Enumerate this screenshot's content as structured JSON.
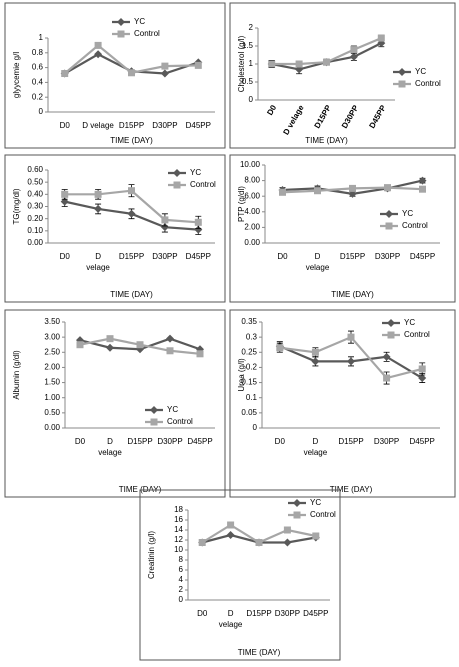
{
  "chart_data": [
    {
      "type": "line",
      "y_label": "glyycemie g/l",
      "x_label": "TIME (DAY)",
      "legend": "top",
      "categories": [
        "D0",
        "D velage",
        "D15PP",
        "D30PP",
        "D45PP"
      ],
      "ylim": [
        0,
        1
      ],
      "yticks": [
        0,
        0.2,
        0.4,
        0.6,
        0.8,
        1
      ],
      "series": [
        {
          "name": "YC",
          "color": "#595959",
          "values": [
            0.52,
            0.78,
            0.55,
            0.52,
            0.67
          ]
        },
        {
          "name": "Control",
          "color": "#a6a6a6",
          "values": [
            0.52,
            0.9,
            0.53,
            0.62,
            0.63
          ]
        }
      ]
    },
    {
      "type": "line",
      "y_label": "Cholesterol (g/l)",
      "x_label": "TIME (DAY)",
      "legend": "right",
      "categories": [
        "D0",
        "D velage",
        "D15PP",
        "D30PP",
        "D45PP"
      ],
      "ylim": [
        0,
        2
      ],
      "yticks": [
        0,
        0.5,
        1,
        1.5,
        2
      ],
      "series": [
        {
          "name": "YC",
          "color": "#595959",
          "values": [
            1.0,
            0.85,
            1.05,
            1.2,
            1.58
          ],
          "errors": [
            0.1,
            0.12,
            0.08,
            0.1,
            0.1
          ]
        },
        {
          "name": "Control",
          "color": "#a6a6a6",
          "values": [
            1.0,
            1.0,
            1.05,
            1.4,
            1.72
          ],
          "errors": [
            0.1,
            0.08,
            0.08,
            0.1,
            0.08
          ]
        }
      ]
    },
    {
      "type": "line",
      "y_label": "TG(mg/dl)",
      "x_label": "TIME (DAY)",
      "legend": "top-right",
      "categories": [
        "D0",
        "D velage",
        "D15PP",
        "D30PP",
        "D45PP"
      ],
      "ylim": [
        0,
        0.6
      ],
      "yticks": [
        {
          "value": 0,
          "label": "0.00"
        },
        {
          "value": 0.1,
          "label": "0.10"
        },
        {
          "value": 0.2,
          "label": "0.20"
        },
        {
          "value": 0.3,
          "label": "0.30"
        },
        {
          "value": 0.4,
          "label": "0.40"
        },
        {
          "value": 0.5,
          "label": "0.50"
        },
        {
          "value": 0.6,
          "label": "0.60"
        }
      ],
      "series": [
        {
          "name": "YC",
          "color": "#595959",
          "values": [
            0.34,
            0.28,
            0.24,
            0.13,
            0.11
          ],
          "errors": [
            0.04,
            0.04,
            0.04,
            0.04,
            0.04
          ]
        },
        {
          "name": "Control",
          "color": "#a6a6a6",
          "values": [
            0.4,
            0.4,
            0.43,
            0.19,
            0.17
          ],
          "errors": [
            0.04,
            0.04,
            0.05,
            0.05,
            0.05
          ]
        }
      ]
    },
    {
      "type": "line",
      "y_label": "PTP (g/dl)",
      "x_label": "TIME (DAY)",
      "legend": "right",
      "categories": [
        "D0",
        "D velage",
        "D15PP",
        "D30PP",
        "D45PP"
      ],
      "ylim": [
        0,
        10
      ],
      "yticks": [
        {
          "value": 0,
          "label": "0.00"
        },
        {
          "value": 2,
          "label": "2.00"
        },
        {
          "value": 4,
          "label": "4.00"
        },
        {
          "value": 6,
          "label": "6.00"
        },
        {
          "value": 8,
          "label": "8.00"
        },
        {
          "value": 10,
          "label": "10.00"
        }
      ],
      "series": [
        {
          "name": "YC",
          "color": "#595959",
          "values": [
            6.8,
            7.0,
            6.3,
            7.0,
            8.0
          ],
          "errors": [
            0.3,
            0.3,
            0.3,
            0.3,
            0.3
          ]
        },
        {
          "name": "Control",
          "color": "#a6a6a6",
          "values": [
            6.5,
            6.7,
            7.0,
            7.1,
            6.9
          ],
          "errors": [
            0.3,
            0.3,
            0.3,
            0.3,
            0.3
          ]
        }
      ]
    },
    {
      "type": "line",
      "y_label": "Albumin (g/dl)",
      "x_label": "TIME (DAY)",
      "legend": "bottom",
      "categories": [
        "D0",
        "D velage",
        "D15PP",
        "D30PP",
        "D45PP"
      ],
      "ylim": [
        0,
        3.5
      ],
      "yticks": [
        {
          "value": 0,
          "label": "0.00"
        },
        {
          "value": 0.5,
          "label": "0.50"
        },
        {
          "value": 1,
          "label": "1.00"
        },
        {
          "value": 1.5,
          "label": "1.50"
        },
        {
          "value": 2,
          "label": "2.00"
        },
        {
          "value": 2.5,
          "label": "2.50"
        },
        {
          "value": 3,
          "label": "3.00"
        },
        {
          "value": 3.5,
          "label": "3.50"
        }
      ],
      "series": [
        {
          "name": "YC",
          "color": "#595959",
          "values": [
            2.9,
            2.65,
            2.6,
            2.95,
            2.6
          ]
        },
        {
          "name": "Control",
          "color": "#a6a6a6",
          "values": [
            2.75,
            2.95,
            2.75,
            2.55,
            2.45
          ]
        }
      ]
    },
    {
      "type": "line",
      "y_label": "Urea (g/l)",
      "x_label": "TIME (DAY)",
      "legend": "top-right",
      "categories": [
        "D0",
        "D velage",
        "D15PP",
        "D30PP",
        "D45PP"
      ],
      "ylim": [
        0,
        0.35
      ],
      "yticks": [
        0,
        0.05,
        0.1,
        0.15,
        0.2,
        0.25,
        0.3,
        0.35
      ],
      "series": [
        {
          "name": "YC",
          "color": "#595959",
          "values": [
            0.27,
            0.22,
            0.22,
            0.235,
            0.165
          ],
          "errors": [
            0.015,
            0.015,
            0.015,
            0.015,
            0.015
          ]
        },
        {
          "name": "Control",
          "color": "#a6a6a6",
          "values": [
            0.265,
            0.25,
            0.3,
            0.165,
            0.195
          ],
          "errors": [
            0.015,
            0.015,
            0.02,
            0.02,
            0.02
          ]
        }
      ]
    },
    {
      "type": "line",
      "y_label": "Creatinin (g/l)",
      "x_label": "TIME (DAY)",
      "legend": "top-right",
      "categories": [
        "D0",
        "D velage",
        "D15PP",
        "D30PP",
        "D45PP"
      ],
      "ylim": [
        0,
        18
      ],
      "yticks": [
        0,
        2,
        4,
        6,
        8,
        10,
        12,
        14,
        16,
        18
      ],
      "series": [
        {
          "name": "YC",
          "color": "#595959",
          "values": [
            11.5,
            13,
            11.5,
            11.5,
            12.5
          ]
        },
        {
          "name": "Control",
          "color": "#a6a6a6",
          "values": [
            11.5,
            15,
            11.5,
            14,
            12.8
          ]
        }
      ]
    }
  ]
}
